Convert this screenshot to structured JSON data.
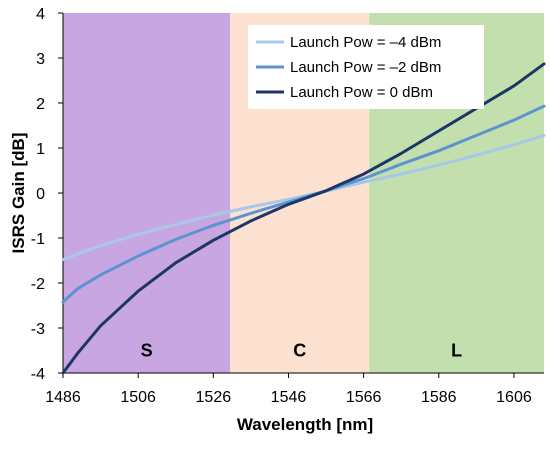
{
  "chart_data": {
    "type": "line",
    "xlabel": "Wavelength [nm]",
    "ylabel": "ISRS Gain [dB]",
    "xlim": [
      1486,
      1614
    ],
    "ylim": [
      -4,
      4
    ],
    "x_ticks": [
      1486,
      1506,
      1526,
      1546,
      1566,
      1586,
      1606
    ],
    "y_ticks": [
      4,
      3,
      2,
      1,
      0,
      -1,
      -2,
      -3,
      -4
    ],
    "grid": false,
    "legend_position": "top-center",
    "bands": [
      {
        "label": "S",
        "x_start": 1486,
        "x_end": 1530.5,
        "color": "#c7a6e2"
      },
      {
        "label": "C",
        "x_start": 1530.5,
        "x_end": 1567.5,
        "color": "#fce1d0"
      },
      {
        "label": "L",
        "x_start": 1567.5,
        "x_end": 1614,
        "color": "#c3dfae"
      }
    ],
    "x": [
      1486,
      1490,
      1496,
      1506,
      1516,
      1526,
      1536,
      1546,
      1556,
      1560,
      1566,
      1576,
      1586,
      1596,
      1606,
      1614
    ],
    "series": [
      {
        "name": "Launch Pow = –4 dBm",
        "color": "#a9c8e8",
        "values": [
          -1.48,
          -1.35,
          -1.17,
          -0.92,
          -0.7,
          -0.49,
          -0.31,
          -0.14,
          0.04,
          0.12,
          0.24,
          0.42,
          0.62,
          0.84,
          1.07,
          1.28
        ]
      },
      {
        "name": "Launch Pow = –2 dBm",
        "color": "#5c94cf",
        "values": [
          -2.42,
          -2.12,
          -1.82,
          -1.4,
          -1.03,
          -0.72,
          -0.45,
          -0.2,
          0.05,
          0.16,
          0.32,
          0.64,
          0.94,
          1.28,
          1.62,
          1.93
        ]
      },
      {
        "name": "Launch Pow = 0 dBm",
        "color": "#1c3766",
        "values": [
          -4.0,
          -3.55,
          -2.95,
          -2.18,
          -1.55,
          -1.05,
          -0.62,
          -0.25,
          0.05,
          0.2,
          0.42,
          0.88,
          1.38,
          1.88,
          2.38,
          2.87
        ]
      }
    ]
  }
}
